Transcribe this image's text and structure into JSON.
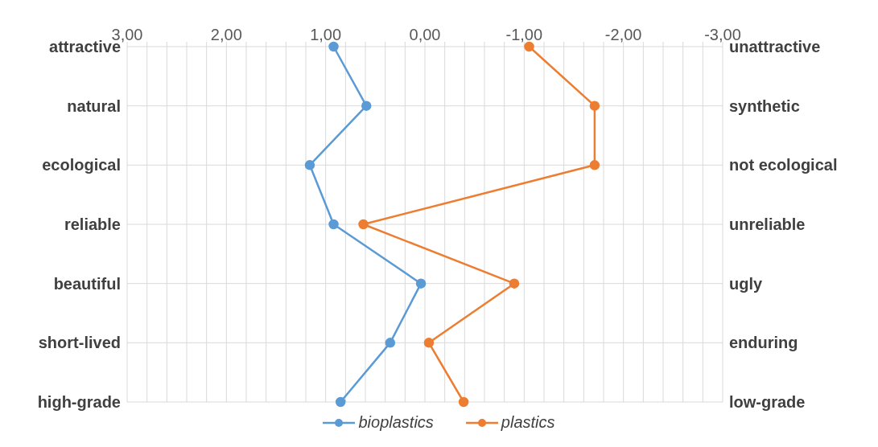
{
  "chart_data": {
    "type": "line",
    "categories": [
      "attractive",
      "natural",
      "ecological",
      "reliable",
      "beautiful",
      "short-lived",
      "high-grade"
    ],
    "y2_categories": [
      "unattractive",
      "synthetic",
      "not ecological",
      "unreliable",
      "ugly",
      "enduring",
      "low-grade"
    ],
    "series": [
      {
        "name": "bioplastics",
        "color": "#5b9bd5",
        "values": [
          0.92,
          0.59,
          1.16,
          0.92,
          0.04,
          0.35,
          0.85
        ]
      },
      {
        "name": "plastics",
        "color": "#ed7d31",
        "values": [
          -1.05,
          -1.71,
          -1.71,
          0.62,
          -0.9,
          -0.04,
          -0.39
        ]
      }
    ],
    "xlim": [
      3,
      -3
    ],
    "xticks": [
      {
        "value": 3,
        "label": "3,00"
      },
      {
        "value": 2.8,
        "label": null
      },
      {
        "value": 2.6,
        "label": null
      },
      {
        "value": 2.4,
        "label": null
      },
      {
        "value": 2.2,
        "label": null
      },
      {
        "value": 2,
        "label": "2,00"
      },
      {
        "value": 1.8,
        "label": null
      },
      {
        "value": 1.6,
        "label": null
      },
      {
        "value": 1.4,
        "label": null
      },
      {
        "value": 1.2,
        "label": null
      },
      {
        "value": 1,
        "label": "1,00"
      },
      {
        "value": 0.8,
        "label": null
      },
      {
        "value": 0.6,
        "label": null
      },
      {
        "value": 0.4,
        "label": null
      },
      {
        "value": 0.2,
        "label": null
      },
      {
        "value": 0,
        "label": "0,00"
      },
      {
        "value": -0.2,
        "label": null
      },
      {
        "value": -0.4,
        "label": null
      },
      {
        "value": -0.6,
        "label": null
      },
      {
        "value": -0.8,
        "label": null
      },
      {
        "value": -1,
        "label": "-1,00"
      },
      {
        "value": -1.2,
        "label": null
      },
      {
        "value": -1.4,
        "label": null
      },
      {
        "value": -1.6,
        "label": null
      },
      {
        "value": -1.8,
        "label": null
      },
      {
        "value": -2,
        "label": "-2,00"
      },
      {
        "value": -2.2,
        "label": null
      },
      {
        "value": -2.4,
        "label": null
      },
      {
        "value": -2.6,
        "label": null
      },
      {
        "value": -2.8,
        "label": null
      },
      {
        "value": -3,
        "label": "-3,00"
      }
    ],
    "orientation": "horizontal",
    "grid": true,
    "legend": "bottom",
    "marker": "circle",
    "line_style": "solid"
  }
}
